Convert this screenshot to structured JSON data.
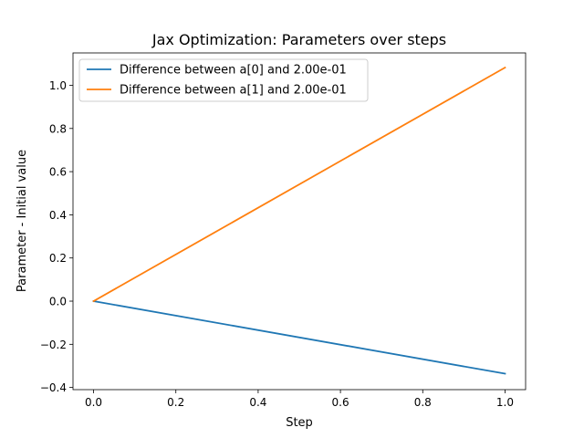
{
  "chart_data": {
    "type": "line",
    "title": "Jax Optimization: Parameters over steps",
    "xlabel": "Step",
    "ylabel": "Parameter - Initial value",
    "xlim": [
      -0.05,
      1.05
    ],
    "ylim": [
      -0.41,
      1.15
    ],
    "xticks": [
      0.0,
      0.2,
      0.4,
      0.6,
      0.8,
      1.0
    ],
    "xtick_labels": [
      "0.0",
      "0.2",
      "0.4",
      "0.6",
      "0.8",
      "1.0"
    ],
    "yticks": [
      -0.4,
      -0.2,
      0.0,
      0.2,
      0.4,
      0.6,
      0.8,
      1.0
    ],
    "ytick_labels": [
      "−0.4",
      "−0.2",
      "0.0",
      "0.2",
      "0.4",
      "0.6",
      "0.8",
      "1.0"
    ],
    "grid": false,
    "legend_position": "top-left",
    "series": [
      {
        "name": "Difference between a[0] and 2.00e-01",
        "color": "#1f77b4",
        "x": [
          0.0,
          1.0
        ],
        "y": [
          0.0,
          -0.336
        ]
      },
      {
        "name": "Difference between a[1] and 2.00e-01",
        "color": "#ff7f0e",
        "x": [
          0.0,
          1.0
        ],
        "y": [
          0.0,
          1.082
        ]
      }
    ]
  }
}
